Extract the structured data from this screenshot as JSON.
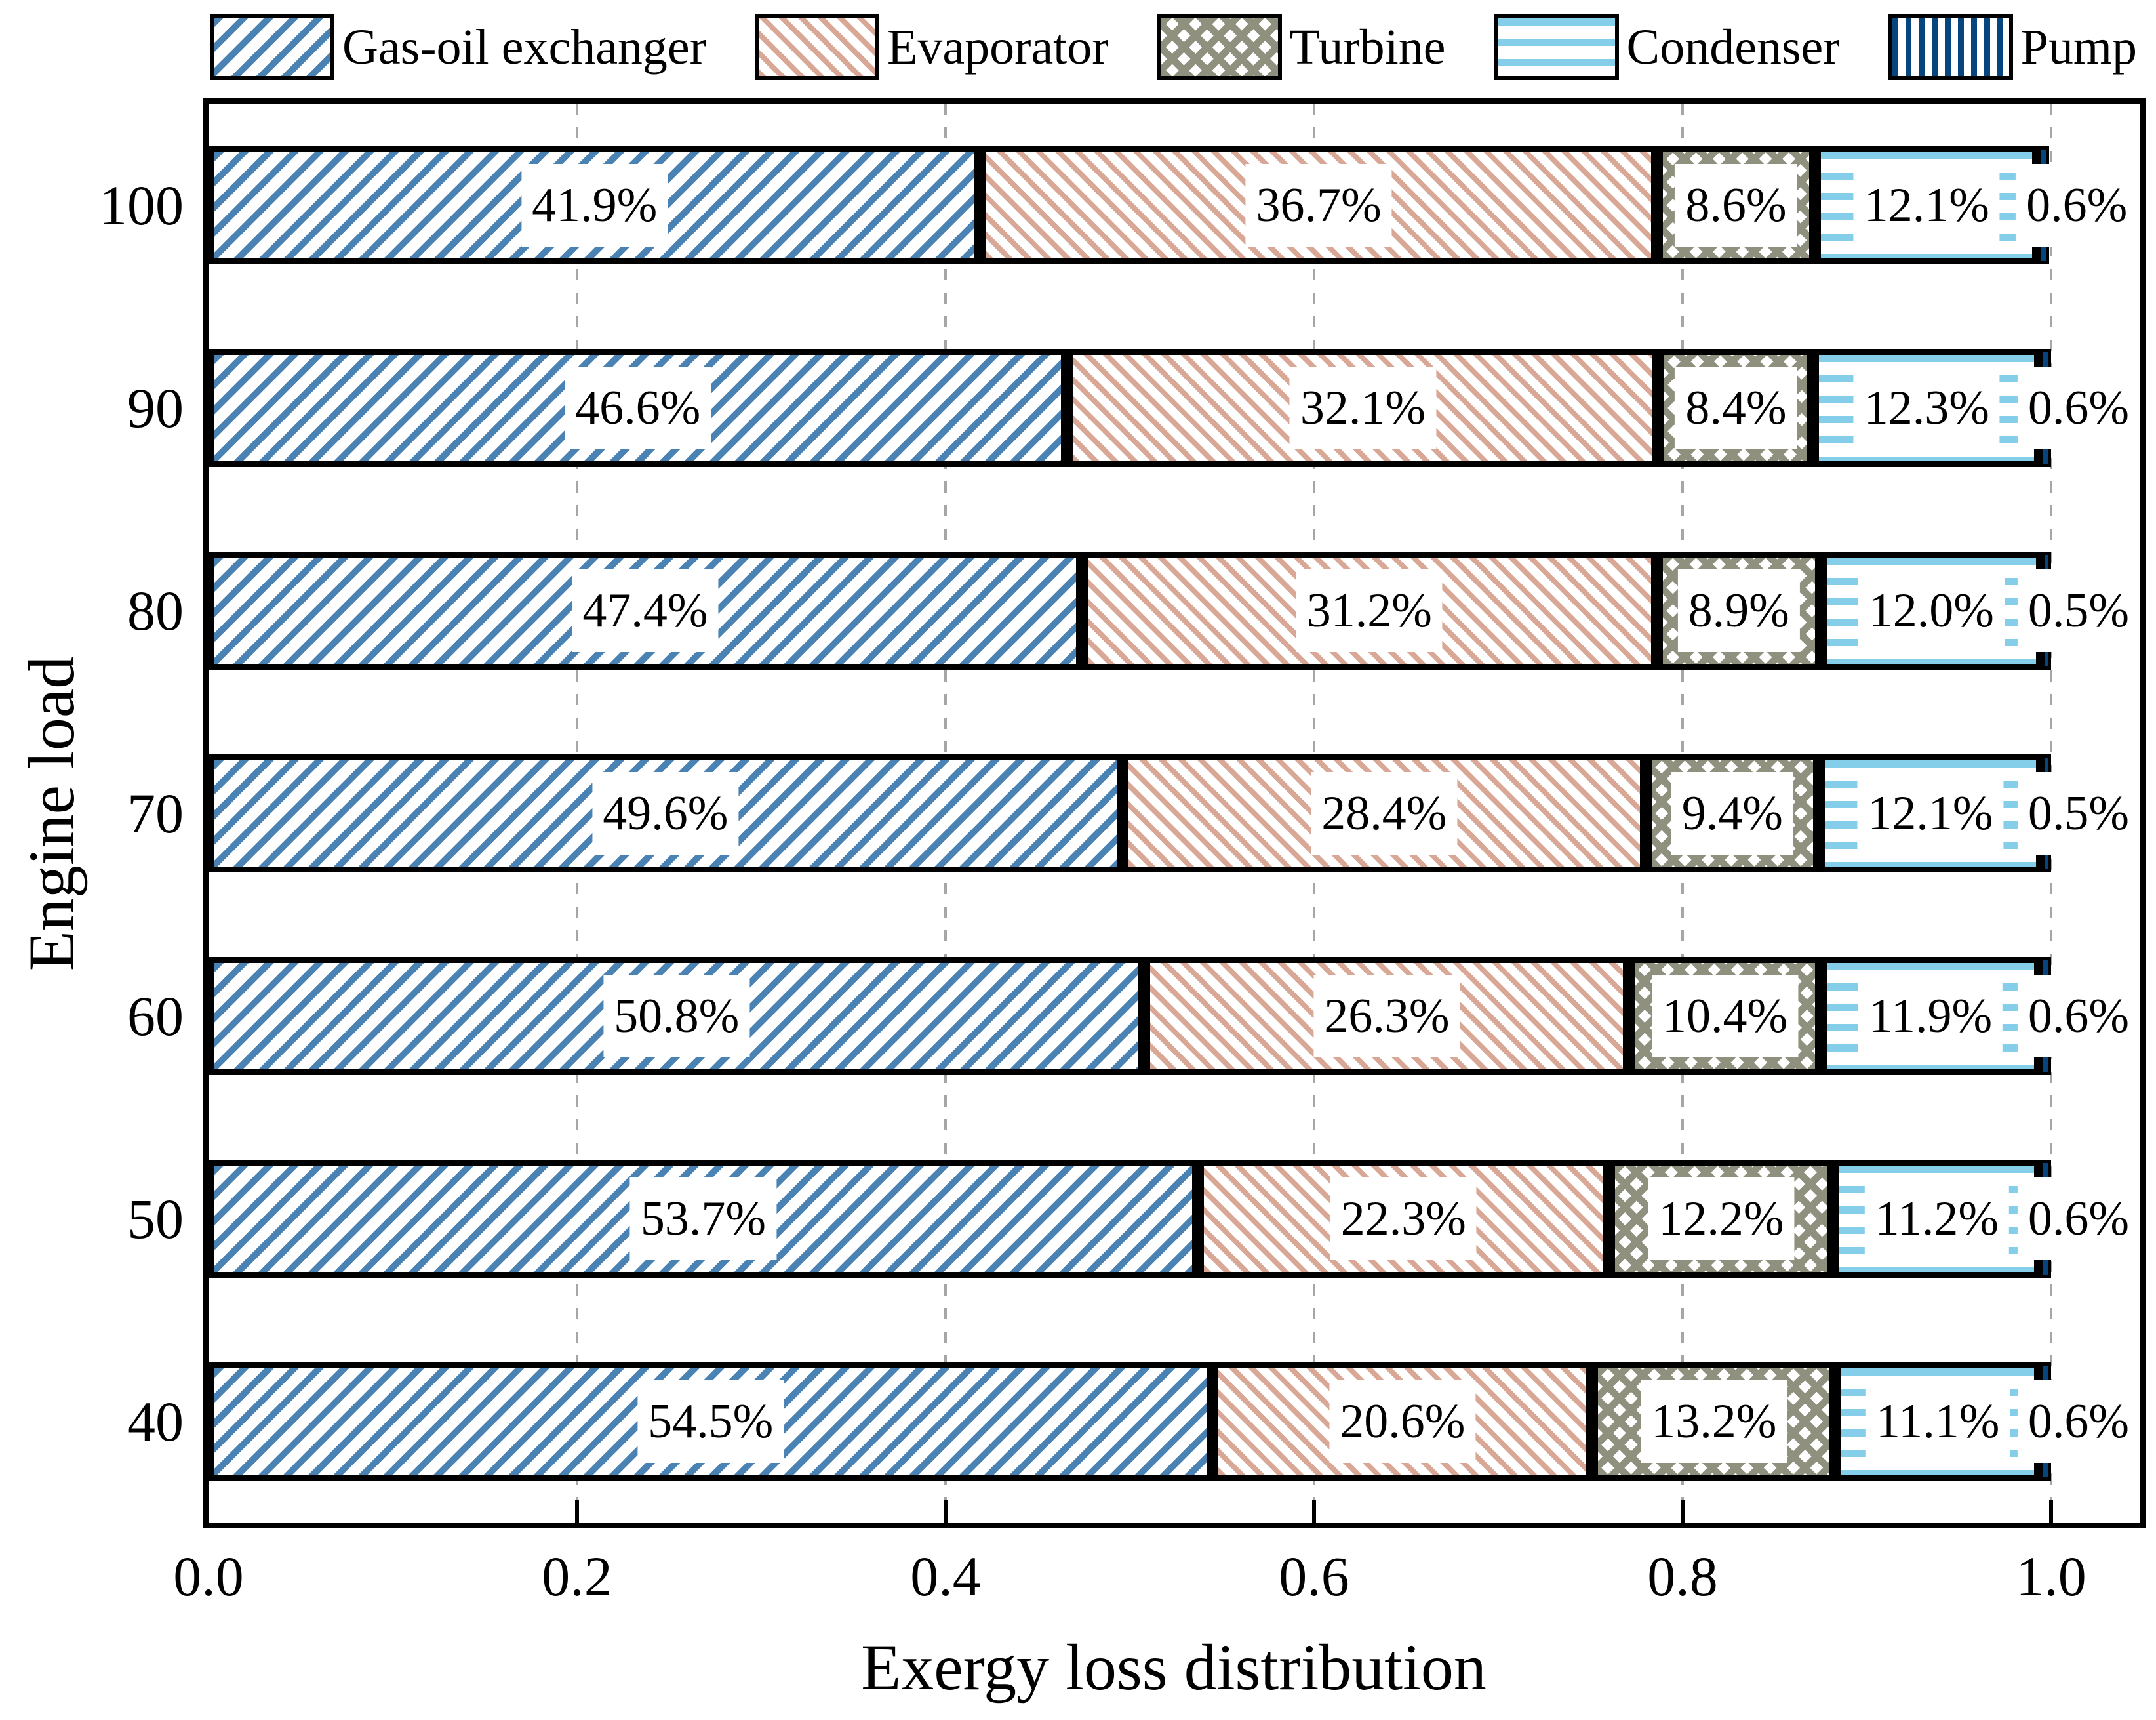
{
  "figure": {
    "background": "#ffffff",
    "grid_color": "#A6A6A6",
    "axis_color": "#000000"
  },
  "chart_data": {
    "type": "bar",
    "orientation": "horizontal-stacked",
    "xlabel": "Exergy loss distribution",
    "ylabel": "Engine load",
    "xlim": [
      0.0,
      1.05
    ],
    "x_ticks": [
      {
        "value": 0.0,
        "label": "0.0"
      },
      {
        "value": 0.2,
        "label": "0.2"
      },
      {
        "value": 0.4,
        "label": "0.4"
      },
      {
        "value": 0.6,
        "label": "0.6"
      },
      {
        "value": 0.8,
        "label": "0.8"
      },
      {
        "value": 1.0,
        "label": "1.0"
      }
    ],
    "grid": "vertical-dashed",
    "legend_position": "top",
    "categories": [
      "100",
      "90",
      "80",
      "70",
      "60",
      "50",
      "40"
    ],
    "series": [
      {
        "name": "Gas-oil exchanger",
        "pattern": "diagonal-forward-hatch",
        "color": "#4A82B4",
        "values": [
          41.9,
          46.6,
          47.4,
          49.6,
          50.8,
          53.7,
          54.5
        ]
      },
      {
        "name": "Evaporator",
        "pattern": "diagonal-backward-hatch",
        "color": "#D8A795",
        "values": [
          36.7,
          32.1,
          31.2,
          28.4,
          26.3,
          22.3,
          20.6
        ]
      },
      {
        "name": "Turbine",
        "pattern": "diamond-crosshatch",
        "color": "#8F917E",
        "values": [
          8.6,
          8.4,
          8.9,
          9.4,
          10.4,
          12.2,
          13.2
        ]
      },
      {
        "name": "Condenser",
        "pattern": "horizontal-lines",
        "color": "#85CEEA",
        "values": [
          12.1,
          12.3,
          12.0,
          12.1,
          11.9,
          11.2,
          11.1
        ]
      },
      {
        "name": "Pump",
        "pattern": "vertical-lines",
        "color": "#07457E",
        "values": [
          0.6,
          0.6,
          0.5,
          0.5,
          0.6,
          0.6,
          0.6
        ]
      }
    ],
    "bar_label_format": "one-decimal-percent"
  }
}
